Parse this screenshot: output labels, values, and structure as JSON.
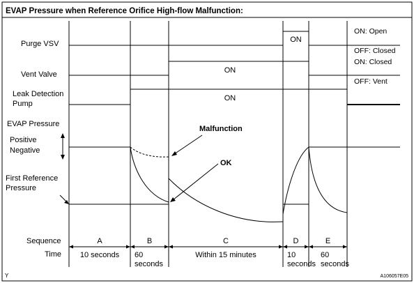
{
  "title": "EVAP Pressure when Reference Orifice High-flow Malfunction:",
  "rows": {
    "purge_vsv": {
      "label": "Purge VSV",
      "on_label": "ON",
      "legend_on": "ON: Open",
      "legend_off": "OFF: Closed"
    },
    "vent_valve": {
      "label": "Vent Valve",
      "on_label": "ON",
      "legend_on": "ON: Closed",
      "legend_off": "OFF: Vent"
    },
    "leak_pump": {
      "label_line1": "Leak Detection",
      "label_line2": "Pump",
      "on_label": "ON"
    },
    "evap": {
      "label": "EVAP Pressure",
      "positive": "Positive",
      "negative": "Negative",
      "first_ref_line1": "First Reference",
      "first_ref_line2": "Pressure",
      "malfunction": "Malfunction",
      "ok": "OK"
    }
  },
  "sequence": {
    "label": "Sequence",
    "time_label": "Time",
    "phases": [
      {
        "id": "A",
        "time_line1": "10 seconds",
        "time_line2": ""
      },
      {
        "id": "B",
        "time_line1": "60",
        "time_line2": "seconds"
      },
      {
        "id": "C",
        "time_line1": "Within 15 minutes",
        "time_line2": ""
      },
      {
        "id": "D",
        "time_line1": "10",
        "time_line2": "seconds"
      },
      {
        "id": "E",
        "time_line1": "60",
        "time_line2": "seconds"
      }
    ]
  },
  "footer": {
    "left_mark": "Y",
    "figure_id": "A106057E05"
  }
}
